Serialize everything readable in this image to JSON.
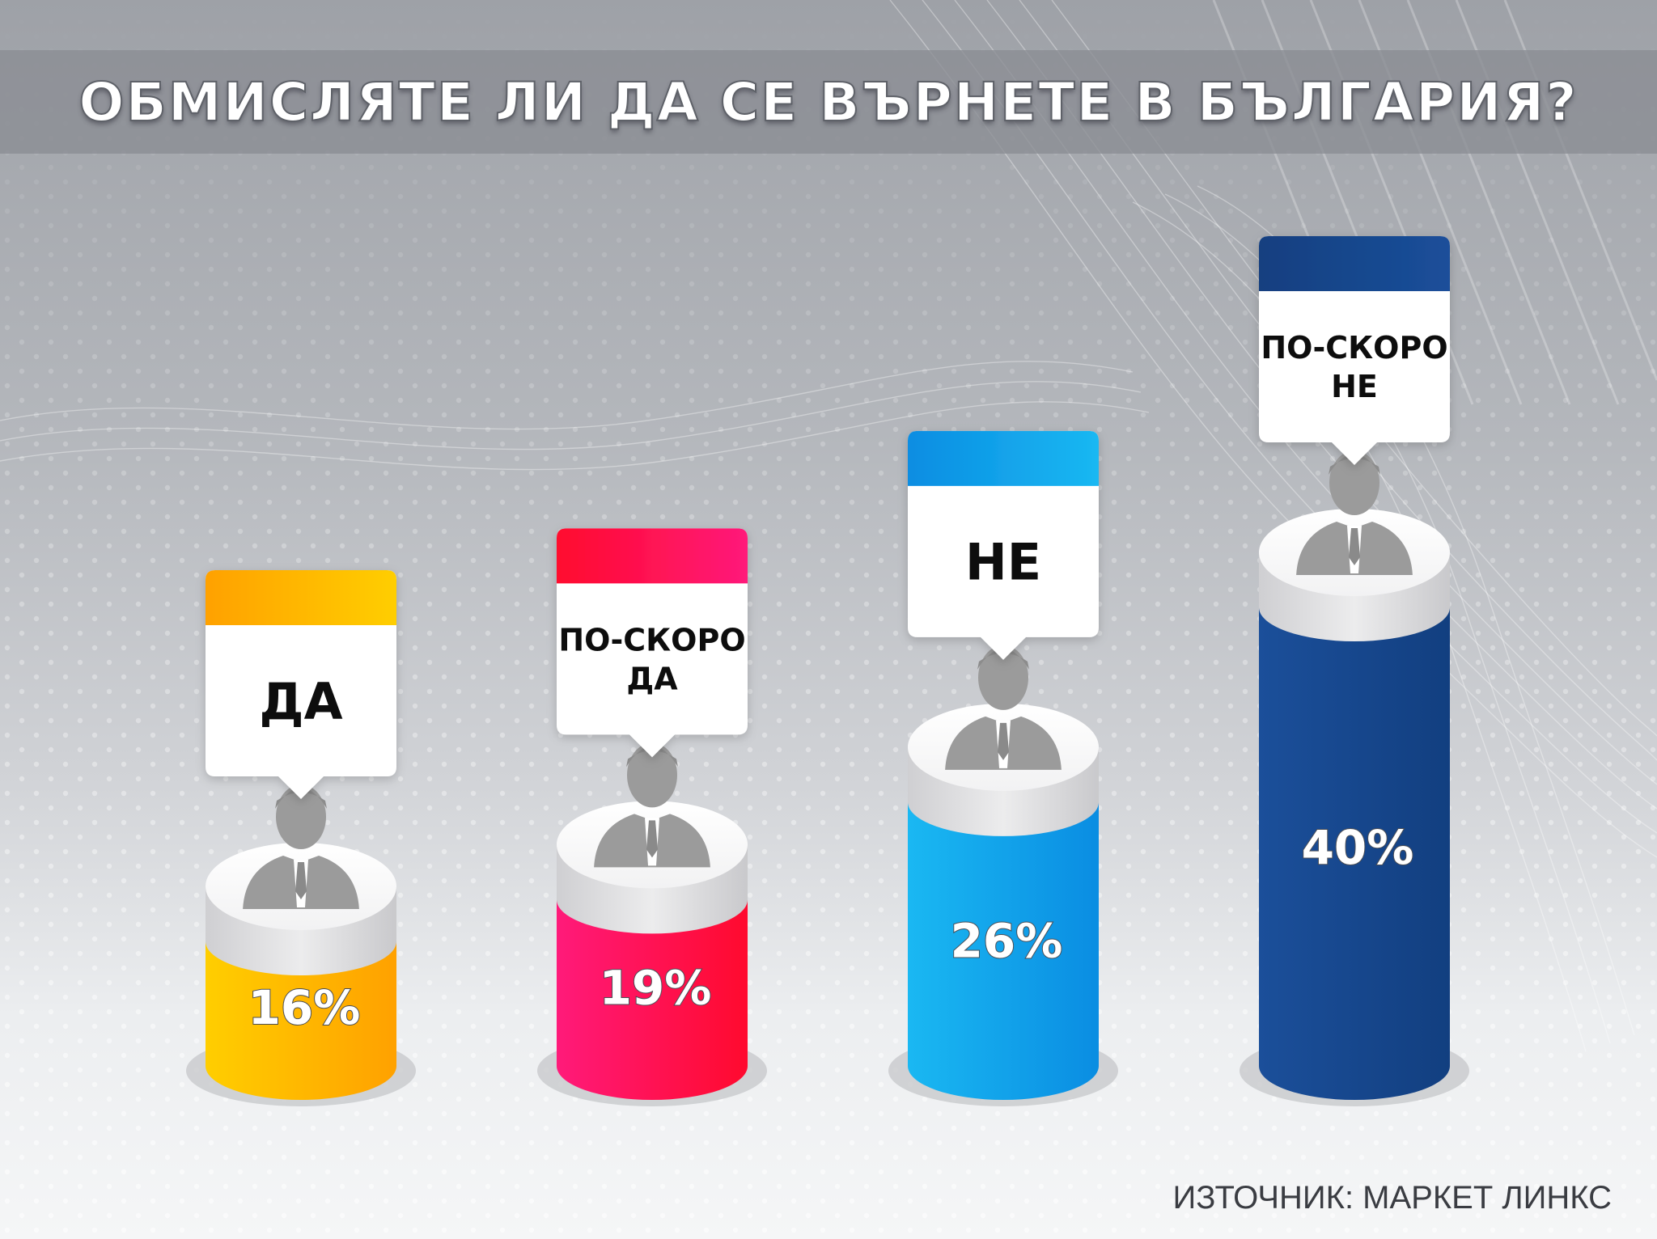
{
  "title": "ОБМИСЛЯТЕ ЛИ ДА СЕ ВЪРНЕТЕ В БЪЛГАРИЯ?",
  "source": "ИЗТОЧНИК: МАРКЕТ ЛИНКС",
  "colors": {
    "yes": [
      "#ffce00",
      "#ffa100"
    ],
    "rather_yes": [
      "#ff1a7a",
      "#ff0a2e"
    ],
    "no": [
      "#1ab8f2",
      "#0a8de2"
    ],
    "rather_no": [
      "#1b4f9a",
      "#123f80"
    ],
    "person": "#9b9b9b"
  },
  "chart_data": {
    "type": "bar",
    "title": "ОБМИСЛЯТЕ ЛИ ДА СЕ ВЪРНЕТЕ В БЪЛГАРИЯ?",
    "categories": [
      "ДА",
      "ПО-СКОРО ДА",
      "НЕ",
      "ПО-СКОРО НЕ"
    ],
    "category_lines": [
      [
        "ДА"
      ],
      [
        "ПО-СКОРО",
        "ДА"
      ],
      [
        "НЕ"
      ],
      [
        "ПО-СКОРО",
        "НЕ"
      ]
    ],
    "values": [
      16,
      19,
      26,
      40
    ],
    "value_labels": [
      "16%",
      "19%",
      "26%",
      "40%"
    ],
    "unit": "%",
    "ylim": [
      0,
      40
    ],
    "grid": false,
    "legend": "none"
  }
}
